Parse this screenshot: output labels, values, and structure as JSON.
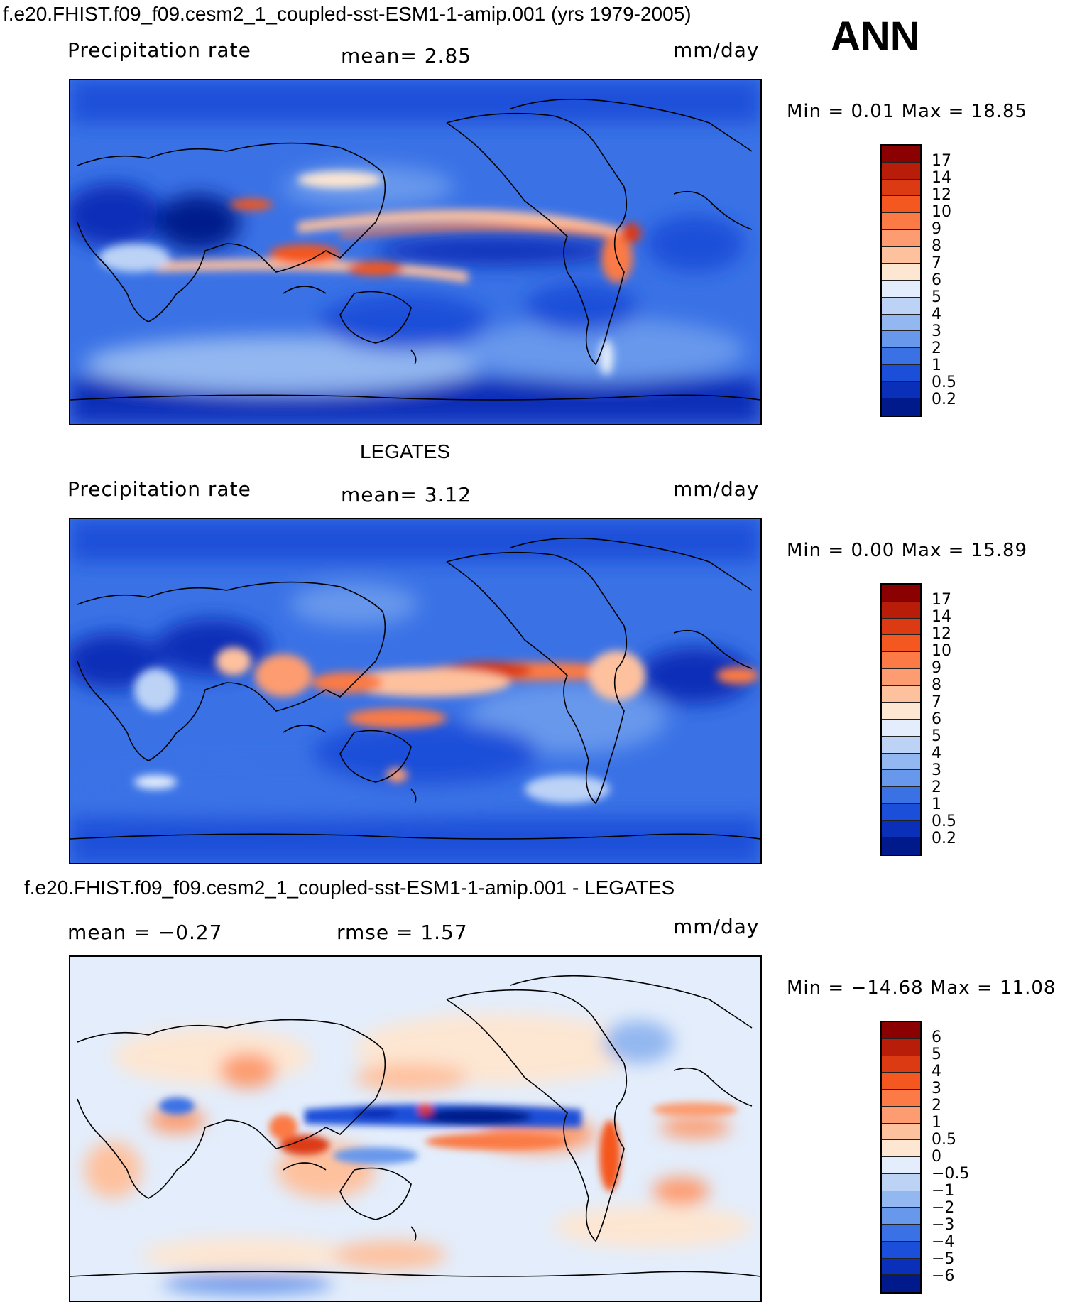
{
  "header": {
    "title": "f.e20.FHIST.f09_f09.cesm2_1_coupled-sst-ESM1-1-amip.001 (yrs 1979-2005)",
    "season": "ANN"
  },
  "panels": [
    {
      "id": "model",
      "heading": "",
      "left_text": "Precipitation  rate",
      "center_text": "mean=    2.85",
      "right_text": "mm/day",
      "minmax": "Min  =    0.01  Max  =    18.85",
      "colorbar": {
        "labels": [
          "17",
          "14",
          "12",
          "10",
          "9",
          "8",
          "7",
          "6",
          "5",
          "4",
          "3",
          "2",
          "1",
          "0.5",
          "0.2"
        ],
        "colors": [
          "#8b0000",
          "#b81d0a",
          "#dc3a12",
          "#f4571f",
          "#fb7a45",
          "#fd9c70",
          "#fec19e",
          "#fde6d2",
          "#e3edfb",
          "#bcd3f6",
          "#93b7f0",
          "#6898ec",
          "#3a72e6",
          "#1b4fd9",
          "#0a2fb8",
          "#001a8c"
        ]
      }
    },
    {
      "id": "obs",
      "heading": "LEGATES",
      "left_text": "Precipitation  rate",
      "center_text": "mean=    3.12",
      "right_text": "mm/day",
      "minmax": "Min  =    0.00  Max  =    15.89",
      "colorbar": {
        "labels": [
          "17",
          "14",
          "12",
          "10",
          "9",
          "8",
          "7",
          "6",
          "5",
          "4",
          "3",
          "2",
          "1",
          "0.5",
          "0.2"
        ],
        "colors": [
          "#8b0000",
          "#b81d0a",
          "#dc3a12",
          "#f4571f",
          "#fb7a45",
          "#fd9c70",
          "#fec19e",
          "#fde6d2",
          "#e3edfb",
          "#bcd3f6",
          "#93b7f0",
          "#6898ec",
          "#3a72e6",
          "#1b4fd9",
          "#0a2fb8",
          "#001a8c"
        ]
      }
    },
    {
      "id": "diff",
      "heading": "f.e20.FHIST.f09_f09.cesm2_1_coupled-sst-ESM1-1-amip.001 - LEGATES",
      "left_text": "mean  =    −0.27",
      "center_text": "rmse  =    1.57",
      "right_text": "mm/day",
      "minmax": "Min  = −14.68  Max  =    11.08",
      "colorbar": {
        "labels": [
          "6",
          "5",
          "4",
          "3",
          "2",
          "1",
          "0.5",
          "0",
          "−0.5",
          "−1",
          "−2",
          "−3",
          "−4",
          "−5",
          "−6"
        ],
        "colors": [
          "#8b0000",
          "#b81d0a",
          "#dc3a12",
          "#f4571f",
          "#fb7a45",
          "#fd9c70",
          "#fec19e",
          "#fde6d2",
          "#e3edfb",
          "#bcd3f6",
          "#93b7f0",
          "#6898ec",
          "#3a72e6",
          "#1b4fd9",
          "#0a2fb8",
          "#001a8c"
        ]
      }
    }
  ]
}
